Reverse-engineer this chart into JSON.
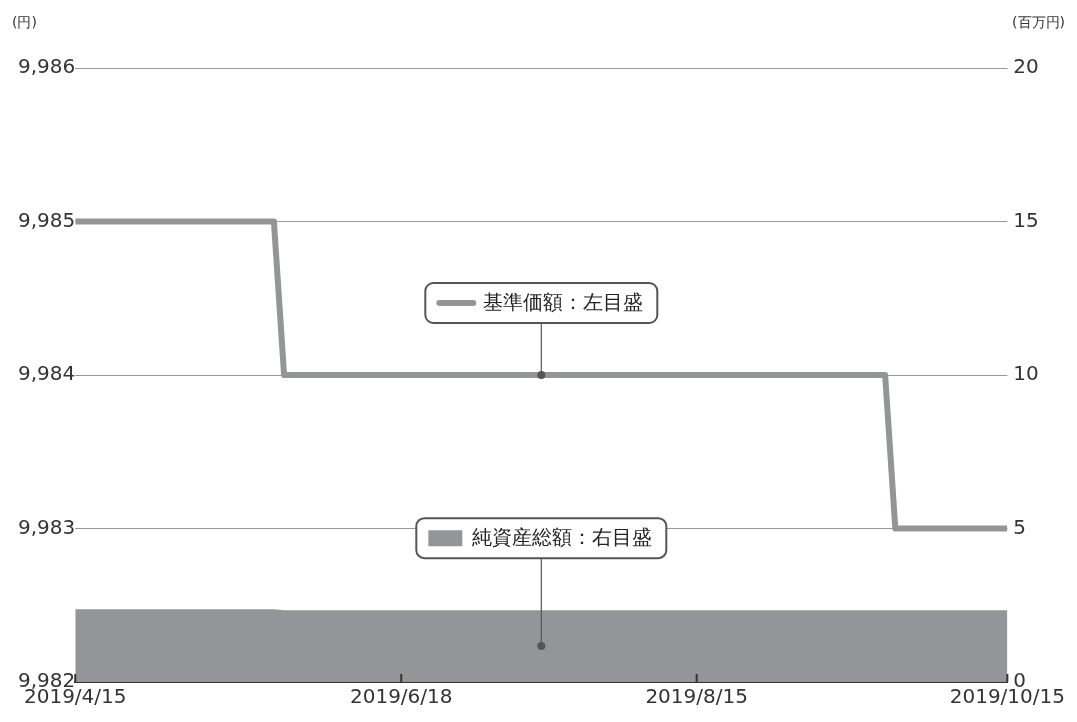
{
  "chart_data": {
    "type": "line",
    "ylabel": "(円)",
    "y2label": "(百万円)",
    "xlim": [
      "2019-04-15",
      "2019-10-15"
    ],
    "xticks": [
      {
        "value": "2019-04-15",
        "label": "2019/4/15"
      },
      {
        "value": "2019-06-18",
        "label": "2019/6/18"
      },
      {
        "value": "2019-08-15",
        "label": "2019/8/15"
      },
      {
        "value": "2019-10-15",
        "label": "2019/10/15"
      }
    ],
    "ylim": [
      9982,
      9986
    ],
    "yticks": [
      {
        "value": 9982,
        "label": "9,982"
      },
      {
        "value": 9983,
        "label": "9,983"
      },
      {
        "value": 9984,
        "label": "9,984"
      },
      {
        "value": 9985,
        "label": "9,985"
      },
      {
        "value": 9986,
        "label": "9,986"
      }
    ],
    "y2lim": [
      0,
      20
    ],
    "y2ticks": [
      0,
      5,
      10,
      15,
      20
    ],
    "grid": "y",
    "legend": "center",
    "series": [
      {
        "name": "純資産総額：右目盛",
        "type": "area",
        "axis": "y2",
        "color": "#939598",
        "x": [
          "2019-04-15",
          "2019-05-24",
          "2019-05-26",
          "2019-10-15"
        ],
        "values": [
          2.37,
          2.37,
          2.34,
          2.34
        ]
      },
      {
        "name": "基準価額：左目盛",
        "type": "line",
        "color": "#939598",
        "x": [
          "2019-04-15",
          "2019-05-24",
          "2019-05-26",
          "2019-09-21",
          "2019-09-23",
          "2019-10-15"
        ],
        "values": [
          9985,
          9985,
          9984,
          9984,
          9983,
          9983
        ]
      }
    ]
  }
}
